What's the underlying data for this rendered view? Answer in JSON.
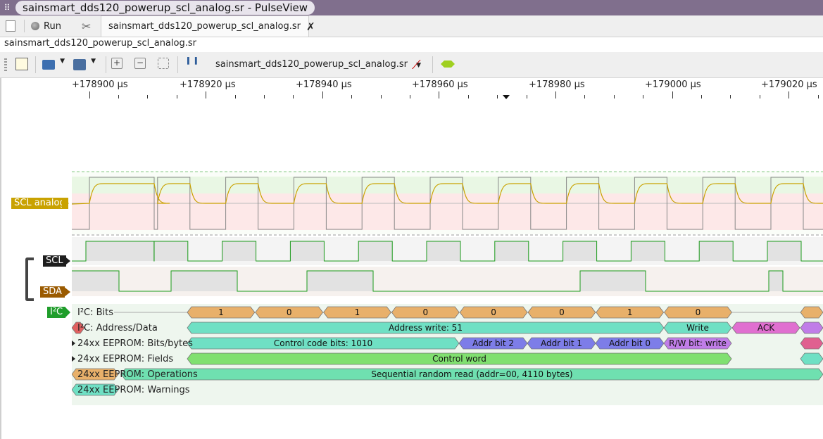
{
  "window": {
    "title": "sainsmart_dds120_powerup_scl_analog.sr - PulseView"
  },
  "tabs": {
    "run_label": "Run",
    "session_tab_label": "sainsmart_dds120_powerup_scl_analog.sr"
  },
  "document": {
    "label": "sainsmart_dds120_powerup_scl_analog.sr"
  },
  "toolbar": {
    "device_label": "sainsmart_dds120_powerup_scl_analog.sr"
  },
  "ruler": {
    "labels": [
      "+178900 µs",
      "+178920 µs",
      "+178940 µs",
      "+178960 µs",
      "+178980 µs",
      "+179000 µs",
      "+179020 µs"
    ]
  },
  "signals": {
    "scl_analog": "SCL analog",
    "scl": "SCL",
    "sda": "SDA",
    "i2c_badge": "I²C"
  },
  "decoders": {
    "rows": [
      {
        "label": "I²C: Bits"
      },
      {
        "label": "I²C: Address/Data"
      },
      {
        "label": "24xx EEPROM: Bits/bytes"
      },
      {
        "label": "24xx EEPROM: Fields"
      },
      {
        "label": "24xx EEPROM: Operations"
      },
      {
        "label": "24xx EEPROM: Warnings"
      }
    ],
    "bits": [
      "1",
      "0",
      "1",
      "0",
      "0",
      "0",
      "1",
      "0"
    ],
    "address_data": [
      "Address write: 51",
      "Write",
      "ACK"
    ],
    "bits_bytes": [
      "Control code bits: 1010",
      "Addr bit 2",
      "Addr bit 1",
      "Addr bit 0",
      "R/W bit: write"
    ],
    "fields": [
      "Control word"
    ],
    "operations": [
      "Sequential random read (addr=00, 4110 bytes)"
    ]
  },
  "colors": {
    "titlebar": "#806f8d",
    "scl_analog": "#c9a200",
    "i2c": "#1f9d2b",
    "sda": "#9a5a00",
    "bits": "#e8b06a",
    "address": "#6fe0c4",
    "ack": "#e06fd0",
    "addrbit": "#7d7de8",
    "rw": "#c07de8",
    "fields": "#80e070",
    "ops": "#6fe0b0"
  }
}
